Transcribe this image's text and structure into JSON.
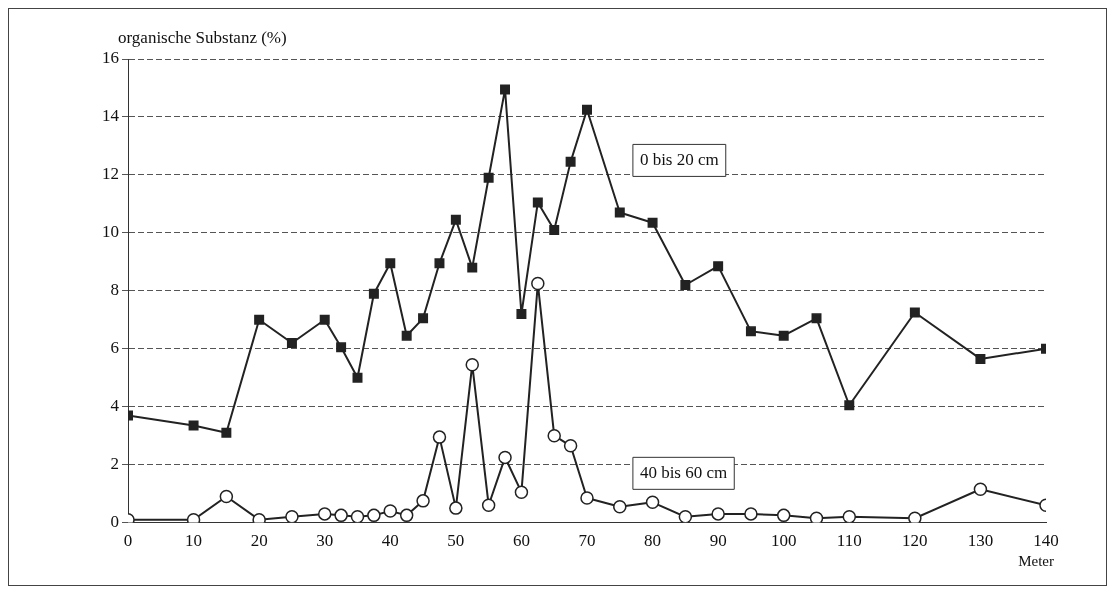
{
  "chart_data": {
    "type": "line",
    "ylabel": "organische Substanz (%)",
    "xlabel": "Meter",
    "x": [
      0,
      10,
      15,
      20,
      25,
      30,
      32.5,
      35,
      37.5,
      40,
      42.5,
      45,
      47.5,
      50,
      52.5,
      55,
      57.5,
      60,
      62.5,
      65,
      67.5,
      70,
      75,
      80,
      85,
      90,
      95,
      100,
      105,
      110,
      120,
      130,
      140
    ],
    "series": [
      {
        "name": "0 bis 20 cm",
        "color": "#222222",
        "marker": "square",
        "values": [
          3.7,
          3.35,
          3.1,
          7.0,
          6.2,
          7.0,
          6.05,
          5.0,
          7.9,
          8.95,
          6.45,
          7.05,
          8.95,
          10.45,
          8.8,
          11.9,
          14.95,
          7.2,
          11.05,
          10.1,
          12.45,
          14.25,
          10.7,
          10.35,
          8.2,
          8.85,
          6.6,
          6.45,
          7.05,
          4.05,
          7.25,
          5.65,
          6.0
        ]
      },
      {
        "name": "40 bis 60 cm",
        "color": "#222222",
        "marker": "circle",
        "values": [
          0.1,
          0.1,
          0.9,
          0.1,
          0.2,
          0.3,
          0.25,
          0.2,
          0.25,
          0.4,
          0.25,
          0.75,
          2.95,
          0.5,
          5.45,
          0.6,
          2.25,
          1.05,
          8.25,
          3.0,
          2.65,
          0.85,
          0.55,
          0.7,
          0.2,
          0.3,
          0.3,
          0.25,
          0.15,
          0.2,
          0.15,
          1.15,
          0.6
        ]
      }
    ],
    "xlim": [
      0,
      140
    ],
    "xticks": [
      0,
      10,
      20,
      30,
      40,
      50,
      60,
      70,
      80,
      90,
      100,
      110,
      120,
      130,
      140
    ],
    "ylim": [
      0,
      16
    ],
    "yticks": [
      0,
      2,
      4,
      6,
      8,
      10,
      12,
      14,
      16
    ],
    "grid": "y",
    "legend": false,
    "line_style": "solid"
  }
}
